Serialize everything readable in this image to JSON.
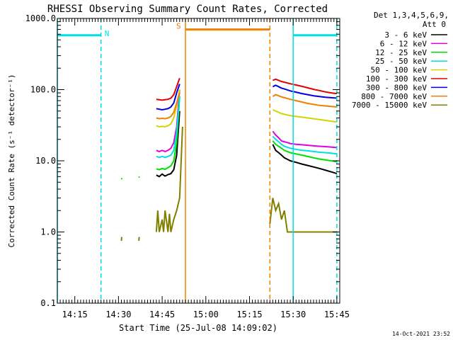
{
  "chart_data": {
    "type": "line",
    "title": "RHESSI Observing Summary Count Rates, Corrected",
    "xlabel": "Start Time (25-Jul-08 14:09:02)",
    "ylabel": "Corrected Count Rate (s⁻¹ detector⁻¹)",
    "yscale": "log",
    "ylim": [
      0.1,
      1000.0
    ],
    "xlim_minutes": [
      0,
      97
    ],
    "x_ticks": [
      {
        "label": "14:15",
        "value": 6
      },
      {
        "label": "14:30",
        "value": 21
      },
      {
        "label": "14:45",
        "value": 36
      },
      {
        "label": "15:00",
        "value": 51
      },
      {
        "label": "15:15",
        "value": 66
      },
      {
        "label": "15:30",
        "value": 81
      },
      {
        "label": "15:45",
        "value": 96
      }
    ],
    "y_ticks": [
      {
        "label": "0.1",
        "value": 0.1
      },
      {
        "label": "1.0",
        "value": 1.0
      },
      {
        "label": "10.0",
        "value": 10.0
      },
      {
        "label": "100.0",
        "value": 100.0
      },
      {
        "label": "1000.0",
        "value": 1000.0
      }
    ],
    "legend": {
      "placement": "top-right",
      "header": [
        "Det 1,3,4,5,6,9,",
        "Att 0"
      ]
    },
    "stamp": "14-Oct-2021 23:52",
    "flags": [
      {
        "label": "N",
        "color": "#00e0e0",
        "x_start": 0,
        "x_end": 15,
        "level": 580
      },
      {
        "label": "",
        "color": "#00e0e0",
        "x_start": 81,
        "x_end": 96,
        "level": 580
      },
      {
        "label": "S",
        "color": "#f08000",
        "x_start": 44,
        "x_end": 73,
        "level": 700
      }
    ],
    "vlines": [
      {
        "x": 0,
        "color": "#00e0e0",
        "style": "solid"
      },
      {
        "x": 15,
        "color": "#00e0e0",
        "style": "dashed"
      },
      {
        "x": 44,
        "color": "#f08000",
        "style": "solid"
      },
      {
        "x": 73,
        "color": "#f08000",
        "style": "dashed"
      },
      {
        "x": 81,
        "color": "#00e0e0",
        "style": "solid"
      },
      {
        "x": 96,
        "color": "#00e0e0",
        "style": "dashed"
      }
    ],
    "series": [
      {
        "name": "3 - 6 keV",
        "color": "#000000",
        "segments": [
          [
            [
              34,
              6.3
            ],
            [
              35,
              6.0
            ],
            [
              36,
              6.5
            ],
            [
              37,
              6.1
            ],
            [
              38,
              6.4
            ],
            [
              39,
              6.6
            ],
            [
              40,
              7.5
            ],
            [
              41,
              12
            ],
            [
              42,
              50
            ]
          ],
          [
            [
              74,
              17
            ],
            [
              75,
              14
            ],
            [
              76,
              13
            ],
            [
              77,
              12
            ],
            [
              78,
              11
            ],
            [
              79,
              10.5
            ],
            [
              80,
              10
            ],
            [
              82,
              9.5
            ],
            [
              84,
              9
            ],
            [
              86,
              8.6
            ],
            [
              88,
              8.2
            ],
            [
              90,
              7.8
            ],
            [
              92,
              7.4
            ],
            [
              94,
              7.0
            ],
            [
              96,
              6.6
            ]
          ]
        ]
      },
      {
        "name": "6 - 12 keV",
        "color": "#e000e0",
        "segments": [
          [
            [
              34,
              14
            ],
            [
              35,
              13.5
            ],
            [
              36,
              14
            ],
            [
              37,
              13.5
            ],
            [
              38,
              14
            ],
            [
              39,
              15
            ],
            [
              40,
              18
            ],
            [
              41,
              30
            ],
            [
              42,
              100
            ]
          ],
          [
            [
              74,
              26
            ],
            [
              75,
              23
            ],
            [
              76,
              21
            ],
            [
              77,
              19
            ],
            [
              78,
              18.5
            ],
            [
              79,
              18
            ],
            [
              80,
              17.5
            ],
            [
              82,
              17
            ],
            [
              84,
              16.8
            ],
            [
              86,
              16.5
            ],
            [
              88,
              16.2
            ],
            [
              90,
              16
            ],
            [
              92,
              15.8
            ],
            [
              94,
              15.6
            ],
            [
              96,
              15.3
            ]
          ]
        ]
      },
      {
        "name": "12 - 25 keV",
        "color": "#00e000",
        "segments": [
          [
            [
              22,
              5.5
            ],
            [
              22.2,
              5.7
            ]
          ],
          [
            [
              28,
              5.8
            ],
            [
              28.2,
              6.0
            ]
          ],
          [
            [
              34,
              7.7
            ],
            [
              35,
              7.5
            ],
            [
              36,
              7.8
            ],
            [
              37,
              7.6
            ],
            [
              38,
              8.0
            ],
            [
              39,
              8.5
            ],
            [
              40,
              10
            ],
            [
              41,
              18
            ],
            [
              42,
              80
            ]
          ],
          [
            [
              74,
              19
            ],
            [
              75,
              17
            ],
            [
              76,
              16
            ],
            [
              77,
              15
            ],
            [
              78,
              14
            ],
            [
              79,
              13.5
            ],
            [
              80,
              13
            ],
            [
              82,
              12.5
            ],
            [
              84,
              12
            ],
            [
              86,
              11.5
            ],
            [
              88,
              11
            ],
            [
              90,
              10.6
            ],
            [
              92,
              10.3
            ],
            [
              94,
              10.0
            ],
            [
              96,
              9.7
            ]
          ]
        ]
      },
      {
        "name": "25 - 50 keV",
        "color": "#00e0e0",
        "segments": [
          [
            [
              34,
              11.5
            ],
            [
              35,
              11.2
            ],
            [
              36,
              11.5
            ],
            [
              37,
              11.2
            ],
            [
              38,
              11.5
            ],
            [
              39,
              12
            ],
            [
              40,
              14
            ],
            [
              41,
              25
            ],
            [
              42,
              80
            ]
          ],
          [
            [
              74,
              22
            ],
            [
              75,
              20
            ],
            [
              76,
              18.5
            ],
            [
              77,
              17
            ],
            [
              78,
              16
            ],
            [
              79,
              15.5
            ],
            [
              80,
              15
            ],
            [
              82,
              14.5
            ],
            [
              84,
              14
            ],
            [
              86,
              13.8
            ],
            [
              88,
              13.5
            ],
            [
              90,
              13.2
            ],
            [
              92,
              13
            ],
            [
              94,
              12.8
            ],
            [
              96,
              12.5
            ]
          ]
        ]
      },
      {
        "name": "50 - 100 keV",
        "color": "#d4d400",
        "segments": [
          [
            [
              34,
              31
            ],
            [
              35,
              30
            ],
            [
              36,
              30.5
            ],
            [
              37,
              30
            ],
            [
              38,
              31
            ],
            [
              39,
              33
            ],
            [
              40,
              40
            ],
            [
              41,
              60
            ],
            [
              42,
              100
            ]
          ],
          [
            [
              74,
              52
            ],
            [
              75,
              50
            ],
            [
              76,
              48
            ],
            [
              77,
              46
            ],
            [
              78,
              45
            ],
            [
              79,
              44
            ],
            [
              80,
              43
            ],
            [
              82,
              42
            ],
            [
              84,
              41
            ],
            [
              86,
              40
            ],
            [
              88,
              39
            ],
            [
              90,
              38
            ],
            [
              92,
              37
            ],
            [
              94,
              36
            ],
            [
              96,
              35
            ]
          ]
        ]
      },
      {
        "name": "100 - 300 keV",
        "color": "#e00000",
        "segments": [
          [
            [
              34,
              73
            ],
            [
              35,
              72
            ],
            [
              36,
              71
            ],
            [
              37,
              72
            ],
            [
              38,
              73
            ],
            [
              39,
              76
            ],
            [
              40,
              85
            ],
            [
              41,
              110
            ],
            [
              42,
              145
            ]
          ],
          [
            [
              74,
              135
            ],
            [
              75,
              140
            ],
            [
              76,
              135
            ],
            [
              77,
              130
            ],
            [
              78,
              127
            ],
            [
              79,
              124
            ],
            [
              80,
              121
            ],
            [
              82,
              116
            ],
            [
              84,
              111
            ],
            [
              86,
              106
            ],
            [
              88,
              101
            ],
            [
              90,
              97
            ],
            [
              92,
              93
            ],
            [
              94,
              90
            ],
            [
              96,
              88
            ]
          ]
        ]
      },
      {
        "name": "300 - 800 keV",
        "color": "#0000e0",
        "segments": [
          [
            [
              34,
              54
            ],
            [
              35,
              53
            ],
            [
              36,
              52
            ],
            [
              37,
              53
            ],
            [
              38,
              54
            ],
            [
              39,
              57
            ],
            [
              40,
              65
            ],
            [
              41,
              90
            ],
            [
              42,
              120
            ]
          ],
          [
            [
              74,
              110
            ],
            [
              75,
              115
            ],
            [
              76,
              110
            ],
            [
              77,
              105
            ],
            [
              78,
              102
            ],
            [
              79,
              99
            ],
            [
              80,
              96
            ],
            [
              82,
              92
            ],
            [
              84,
              88
            ],
            [
              86,
              85
            ],
            [
              88,
              82
            ],
            [
              90,
              80
            ],
            [
              92,
              78
            ],
            [
              94,
              77
            ],
            [
              96,
              76
            ]
          ]
        ]
      },
      {
        "name": "800 - 7000 keV",
        "color": "#f08000",
        "segments": [
          [
            [
              34,
              40
            ],
            [
              35,
              39
            ],
            [
              36,
              39.5
            ],
            [
              37,
              39
            ],
            [
              38,
              40
            ],
            [
              39,
              42
            ],
            [
              40,
              48
            ],
            [
              41,
              65
            ],
            [
              42,
              90
            ]
          ],
          [
            [
              74,
              80
            ],
            [
              75,
              85
            ],
            [
              76,
              82
            ],
            [
              77,
              79
            ],
            [
              78,
              77
            ],
            [
              79,
              75
            ],
            [
              80,
              73
            ],
            [
              82,
              70
            ],
            [
              84,
              67
            ],
            [
              86,
              64
            ],
            [
              88,
              62
            ],
            [
              90,
              60
            ],
            [
              92,
              59
            ],
            [
              94,
              58
            ],
            [
              96,
              57
            ]
          ]
        ]
      },
      {
        "name": "7000 - 15000 keV",
        "color": "#808000",
        "segments": [
          [
            [
              22,
              0.75
            ],
            [
              22.1,
              0.85
            ]
          ],
          [
            [
              28,
              0.75
            ],
            [
              28.1,
              0.85
            ]
          ],
          [
            [
              34,
              1.0
            ],
            [
              34.5,
              2.0
            ],
            [
              35,
              1.0
            ],
            [
              36,
              1.5
            ],
            [
              36.5,
              1.0
            ],
            [
              37,
              2.0
            ],
            [
              38,
              1.0
            ],
            [
              38.5,
              1.8
            ],
            [
              39,
              1.0
            ],
            [
              40,
              1.5
            ],
            [
              41,
              2.0
            ],
            [
              42,
              3.0
            ],
            [
              43,
              30
            ]
          ],
          [
            [
              73,
              1.3
            ],
            [
              74,
              3.0
            ],
            [
              75,
              2.0
            ],
            [
              76,
              2.5
            ],
            [
              77,
              1.5
            ],
            [
              78,
              2.0
            ],
            [
              79,
              1.0
            ],
            [
              80,
              1.0
            ],
            [
              84,
              1.0
            ],
            [
              90,
              1.0
            ],
            [
              96,
              1.0
            ]
          ]
        ]
      }
    ]
  }
}
